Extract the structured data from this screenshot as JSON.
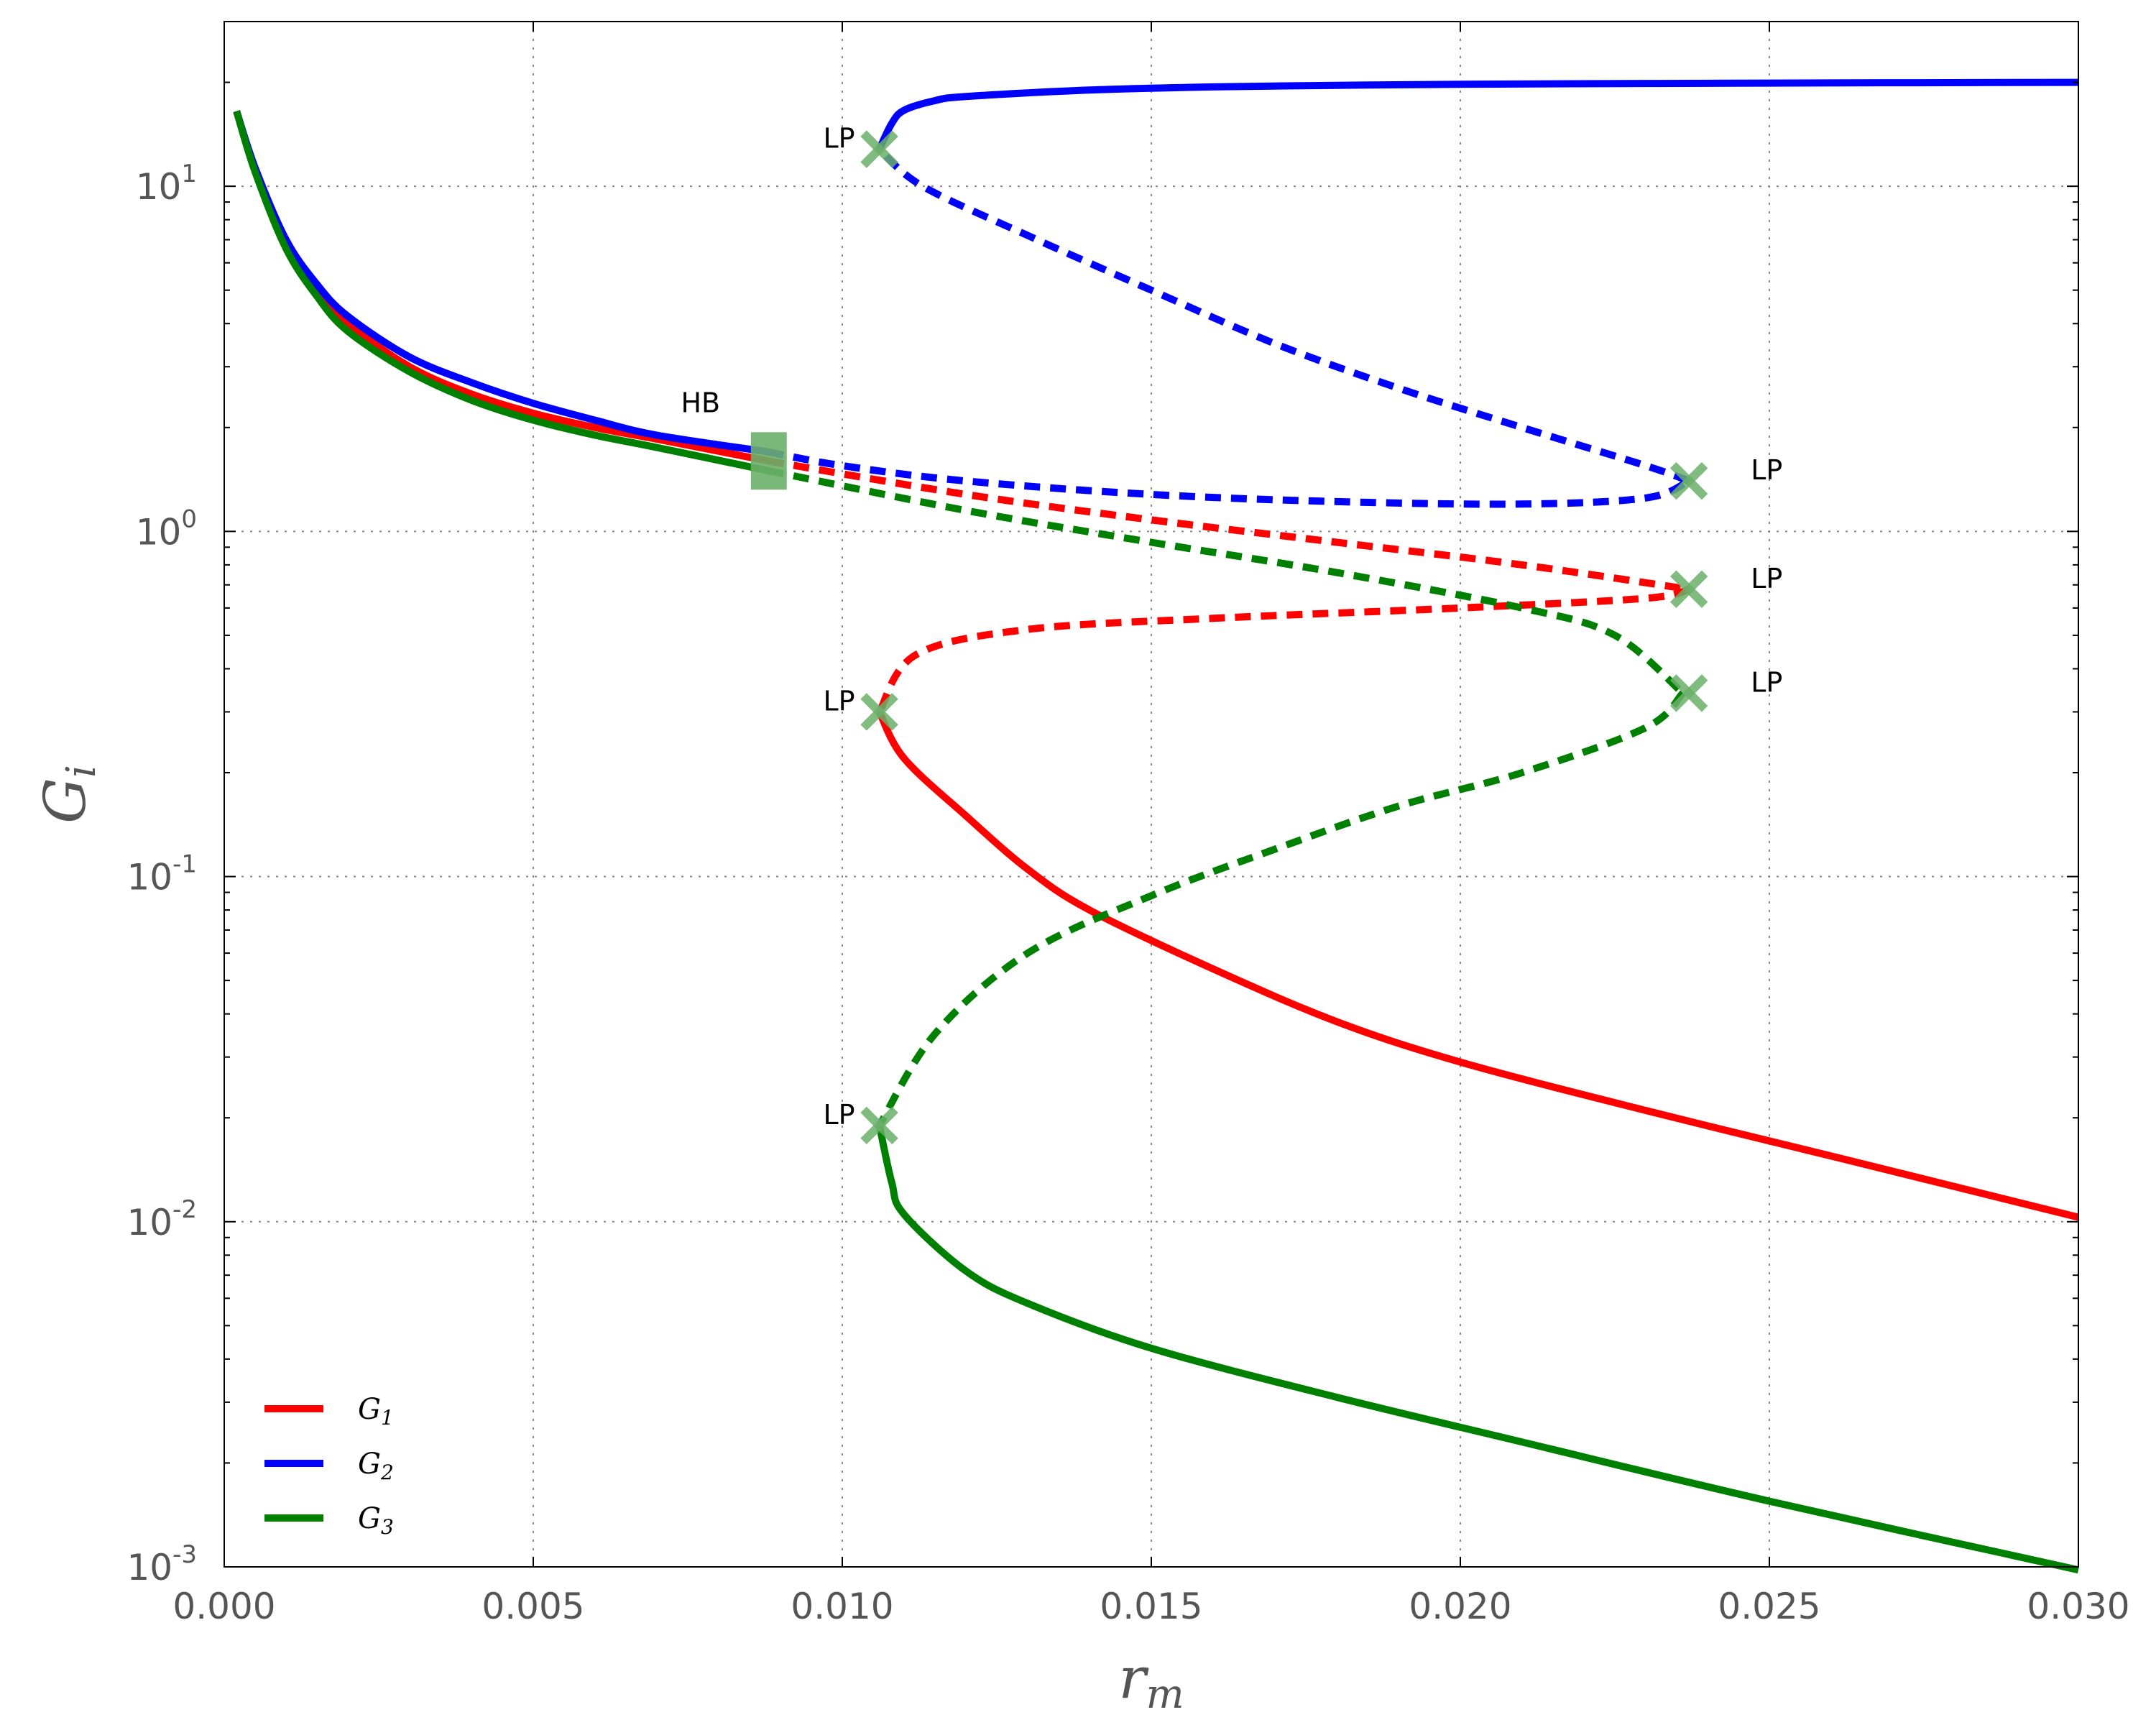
{
  "chart_data": {
    "type": "line",
    "title": "",
    "xlabel": "r",
    "xlabel_sub": "m",
    "ylabel": "G",
    "ylabel_sub": "i",
    "xlim": [
      0.0,
      0.03
    ],
    "ylim": [
      0.001,
      30
    ],
    "yscale": "log",
    "grid": true,
    "legend_position": "lower-left",
    "x_ticks": [
      {
        "value": 0.0,
        "label": "0.000"
      },
      {
        "value": 0.005,
        "label": "0.005"
      },
      {
        "value": 0.01,
        "label": "0.010"
      },
      {
        "value": 0.015,
        "label": "0.015"
      },
      {
        "value": 0.02,
        "label": "0.020"
      },
      {
        "value": 0.025,
        "label": "0.025"
      },
      {
        "value": 0.03,
        "label": "0.030"
      }
    ],
    "y_ticks": [
      {
        "value": 10,
        "base": "10",
        "exp": "1"
      },
      {
        "value": 1,
        "base": "10",
        "exp": "0"
      },
      {
        "value": 0.1,
        "base": "10",
        "exp": "-1"
      },
      {
        "value": 0.01,
        "base": "10",
        "exp": "-2"
      },
      {
        "value": 0.001,
        "base": "10",
        "exp": "-3"
      }
    ],
    "series": [
      {
        "name": "G",
        "sub": "1",
        "color": "#ff0000",
        "segments": [
          {
            "style": "solid",
            "points": [
              [
                0.0002,
                16.5
              ],
              [
                0.0005,
                11.2
              ],
              [
                0.001,
                6.8
              ],
              [
                0.0015,
                5.0
              ],
              [
                0.002,
                4.0
              ],
              [
                0.003,
                3.0
              ],
              [
                0.004,
                2.5
              ],
              [
                0.005,
                2.2
              ],
              [
                0.006,
                2.0
              ],
              [
                0.007,
                1.85
              ],
              [
                0.0088,
                1.6
              ]
            ]
          },
          {
            "style": "dashed",
            "points": [
              [
                0.0088,
                1.6
              ],
              [
                0.012,
                1.28
              ],
              [
                0.015,
                1.08
              ],
              [
                0.018,
                0.93
              ],
              [
                0.021,
                0.8
              ],
              [
                0.0237,
                0.68
              ]
            ]
          },
          {
            "style": "dashed",
            "points": [
              [
                0.0237,
                0.68
              ],
              [
                0.023,
                0.64
              ],
              [
                0.02,
                0.6
              ],
              [
                0.016,
                0.56
              ],
              [
                0.013,
                0.52
              ],
              [
                0.0112,
                0.44
              ],
              [
                0.0106,
                0.3
              ]
            ]
          },
          {
            "style": "solid",
            "points": [
              [
                0.0106,
                0.3
              ],
              [
                0.011,
                0.22
              ],
              [
                0.012,
                0.15
              ],
              [
                0.013,
                0.105
              ],
              [
                0.014,
                0.08
              ],
              [
                0.016,
                0.054
              ],
              [
                0.018,
                0.038
              ],
              [
                0.02,
                0.029
              ],
              [
                0.023,
                0.021
              ],
              [
                0.026,
                0.0155
              ],
              [
                0.03,
                0.0103
              ]
            ]
          }
        ]
      },
      {
        "name": "G",
        "sub": "2",
        "color": "#0000ff",
        "segments": [
          {
            "style": "solid",
            "points": [
              [
                0.0002,
                16.5
              ],
              [
                0.0005,
                11.3
              ],
              [
                0.001,
                7.0
              ],
              [
                0.0015,
                5.2
              ],
              [
                0.002,
                4.2
              ],
              [
                0.003,
                3.2
              ],
              [
                0.004,
                2.7
              ],
              [
                0.005,
                2.35
              ],
              [
                0.006,
                2.1
              ],
              [
                0.007,
                1.9
              ],
              [
                0.0088,
                1.7
              ]
            ]
          },
          {
            "style": "dashed",
            "points": [
              [
                0.0088,
                1.7
              ],
              [
                0.01,
                1.55
              ],
              [
                0.012,
                1.4
              ],
              [
                0.015,
                1.28
              ],
              [
                0.018,
                1.22
              ],
              [
                0.021,
                1.2
              ],
              [
                0.023,
                1.25
              ],
              [
                0.0237,
                1.4
              ]
            ]
          },
          {
            "style": "dashed",
            "points": [
              [
                0.0237,
                1.4
              ],
              [
                0.023,
                1.55
              ],
              [
                0.021,
                2.0
              ],
              [
                0.019,
                2.6
              ],
              [
                0.017,
                3.5
              ],
              [
                0.015,
                5.0
              ],
              [
                0.013,
                7.2
              ],
              [
                0.0113,
                10.0
              ],
              [
                0.0106,
                12.8
              ]
            ]
          },
          {
            "style": "solid",
            "points": [
              [
                0.0106,
                12.8
              ],
              [
                0.0108,
                15.2
              ],
              [
                0.011,
                16.6
              ],
              [
                0.0115,
                17.7
              ],
              [
                0.012,
                18.2
              ],
              [
                0.014,
                19.0
              ],
              [
                0.016,
                19.4
              ],
              [
                0.018,
                19.6
              ],
              [
                0.02,
                19.75
              ],
              [
                0.025,
                19.9
              ],
              [
                0.03,
                20.0
              ]
            ]
          }
        ]
      },
      {
        "name": "G",
        "sub": "3",
        "color": "#008000",
        "segments": [
          {
            "style": "solid",
            "points": [
              [
                0.0002,
                16.5
              ],
              [
                0.0005,
                11.0
              ],
              [
                0.001,
                6.6
              ],
              [
                0.0015,
                4.8
              ],
              [
                0.002,
                3.8
              ],
              [
                0.003,
                2.9
              ],
              [
                0.004,
                2.4
              ],
              [
                0.005,
                2.1
              ],
              [
                0.006,
                1.9
              ],
              [
                0.007,
                1.75
              ],
              [
                0.0088,
                1.5
              ]
            ]
          },
          {
            "style": "dashed",
            "points": [
              [
                0.0088,
                1.5
              ],
              [
                0.012,
                1.15
              ],
              [
                0.015,
                0.93
              ],
              [
                0.018,
                0.76
              ],
              [
                0.021,
                0.6
              ],
              [
                0.0225,
                0.5
              ],
              [
                0.0236,
                0.34
              ]
            ]
          },
          {
            "style": "dashed",
            "points": [
              [
                0.0236,
                0.34
              ],
              [
                0.023,
                0.27
              ],
              [
                0.021,
                0.2
              ],
              [
                0.019,
                0.16
              ],
              [
                0.017,
                0.12
              ],
              [
                0.015,
                0.088
              ],
              [
                0.013,
                0.06
              ],
              [
                0.0115,
                0.035
              ],
              [
                0.0106,
                0.019
              ]
            ]
          },
          {
            "style": "solid",
            "points": [
              [
                0.0106,
                0.019
              ],
              [
                0.0108,
                0.013
              ],
              [
                0.011,
                0.0105
              ],
              [
                0.012,
                0.0072
              ],
              [
                0.013,
                0.0058
              ],
              [
                0.015,
                0.0043
              ],
              [
                0.018,
                0.0031
              ],
              [
                0.021,
                0.0023
              ],
              [
                0.025,
                0.00155
              ],
              [
                0.03,
                0.00098
              ]
            ]
          }
        ]
      }
    ],
    "special_points": [
      {
        "type": "HB",
        "x": 0.0088,
        "y": 1.6,
        "label": "HB",
        "marker": "square",
        "color": "#6ab06a"
      },
      {
        "type": "LP",
        "x": 0.0106,
        "y": 12.8,
        "label": "LP",
        "marker": "x",
        "color": "#6ab06a",
        "label_side": "left"
      },
      {
        "type": "LP",
        "x": 0.0106,
        "y": 0.3,
        "label": "LP",
        "marker": "x",
        "color": "#6ab06a",
        "label_side": "left"
      },
      {
        "type": "LP",
        "x": 0.0106,
        "y": 0.019,
        "label": "LP",
        "marker": "x",
        "color": "#6ab06a",
        "label_side": "left"
      },
      {
        "type": "LP",
        "x": 0.0237,
        "y": 1.4,
        "label": "LP",
        "marker": "x",
        "color": "#6ab06a",
        "label_side": "right"
      },
      {
        "type": "LP",
        "x": 0.0237,
        "y": 0.68,
        "label": "LP",
        "marker": "x",
        "color": "#6ab06a",
        "label_side": "right"
      },
      {
        "type": "LP",
        "x": 0.0237,
        "y": 0.34,
        "label": "LP",
        "marker": "x",
        "color": "#6ab06a",
        "label_side": "right"
      }
    ]
  }
}
